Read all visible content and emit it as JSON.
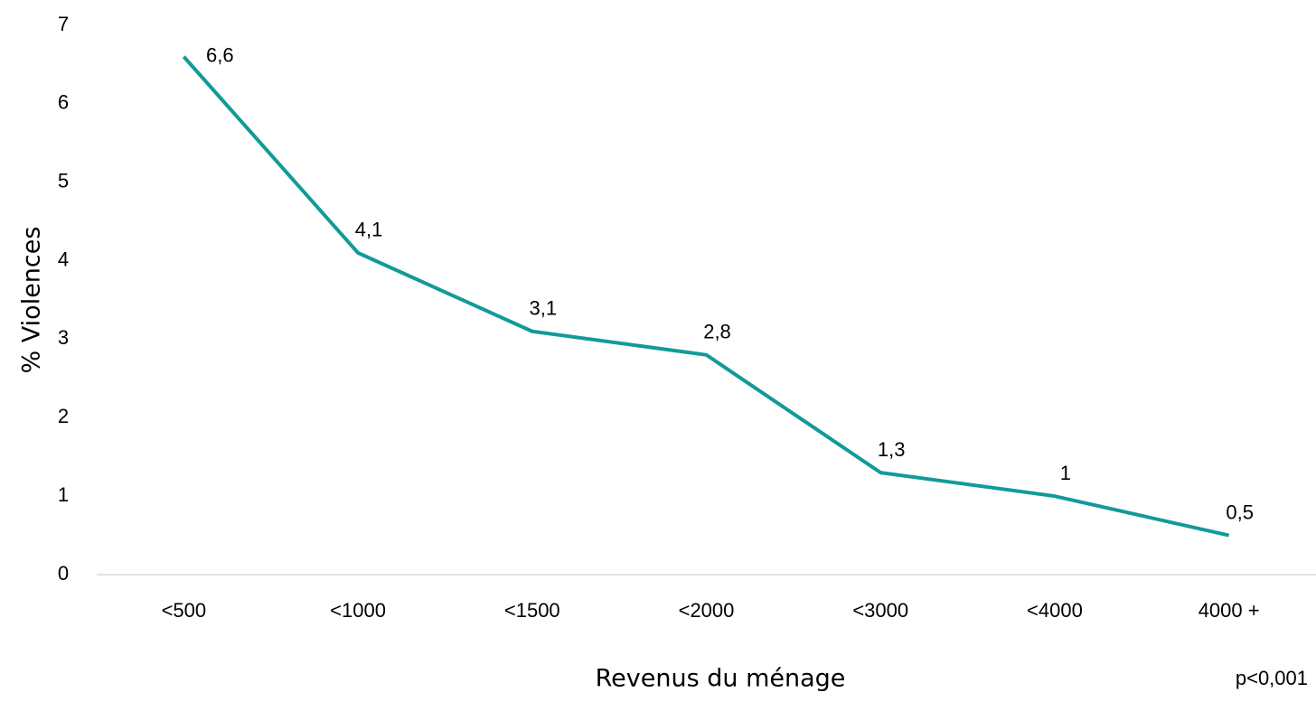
{
  "chart_data": {
    "type": "line",
    "categories": [
      "<500",
      "<1000",
      "<1500",
      "<2000",
      "<3000",
      "<4000",
      "4000 +"
    ],
    "series": [
      {
        "name": "% Violences",
        "color": "#139a98",
        "values": [
          6.6,
          4.1,
          3.1,
          2.8,
          1.3,
          1,
          0.5
        ],
        "value_labels": [
          "6,6",
          "4,1",
          "3,1",
          "2,8",
          "1,3",
          "1",
          "0,5"
        ]
      }
    ],
    "y_label": "% Violences",
    "x_label": "Revenus du ménage",
    "annotation": "p<0,001",
    "ylim": [
      0,
      7
    ],
    "yticks": [
      0,
      1,
      2,
      3,
      4,
      5,
      6,
      7
    ],
    "grid": false
  }
}
